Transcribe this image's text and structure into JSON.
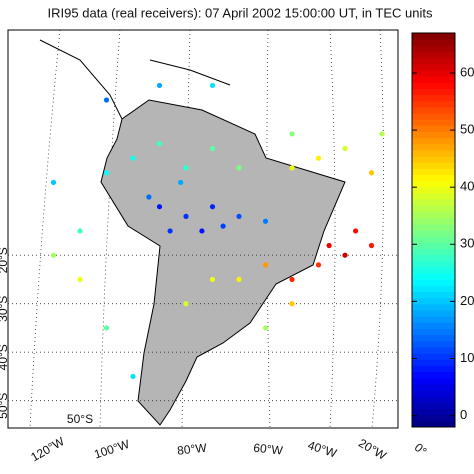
{
  "chart_data": {
    "type": "scatter-map",
    "title": "IRI95 data (real receivers): 07 April 2002 15:00:00 UT, in TEC units",
    "lon": [
      -70,
      -65,
      -60,
      -55,
      -68,
      -62,
      -58,
      -72,
      -50,
      -66,
      -75,
      -70,
      -60,
      -55,
      -65,
      -80,
      -45,
      -40,
      -35,
      -30,
      -28,
      -45,
      -38,
      -35,
      -33,
      -40,
      -30,
      -55,
      -50,
      -60,
      -45,
      -65,
      -50,
      -85,
      -90,
      -85,
      -80,
      -75,
      -90,
      -45,
      -80,
      -70,
      -60
    ],
    "lat": [
      -10,
      -12,
      -10,
      -12,
      -15,
      -15,
      -14,
      -8,
      -13,
      -5,
      0,
      3,
      2,
      -2,
      -2,
      -3,
      -2,
      0,
      2,
      -3,
      5,
      5,
      -18,
      -20,
      -15,
      -22,
      -18,
      -25,
      -22,
      -25,
      -30,
      -30,
      -35,
      -15,
      -20,
      -25,
      -35,
      -45,
      -5,
      -25,
      12,
      15,
      15
    ],
    "values": [
      8,
      10,
      9,
      12,
      10,
      8,
      11,
      14,
      15,
      18,
      25,
      28,
      30,
      32,
      27,
      24,
      40,
      42,
      38,
      45,
      36,
      33,
      60,
      62,
      58,
      55,
      57,
      42,
      48,
      40,
      45,
      38,
      35,
      28,
      35,
      40,
      30,
      22,
      20,
      56,
      14,
      18,
      22
    ],
    "clim": [
      -2,
      67
    ],
    "colorbar_ticks": [
      0,
      10,
      20,
      30,
      40,
      50,
      60
    ],
    "lon_ticks": [
      "120°W",
      "100°W",
      "80°W",
      "60°W",
      "40°W",
      "20°W",
      "0°"
    ],
    "lat_ticks": [
      {
        "value": -20,
        "label": "20°S"
      },
      {
        "value": -30,
        "label": "30°S"
      },
      {
        "value": -40,
        "label": "40°S"
      },
      {
        "value": -50,
        "label": "50°S"
      }
    ],
    "inner_label": "50°S",
    "colormap": "jet"
  }
}
